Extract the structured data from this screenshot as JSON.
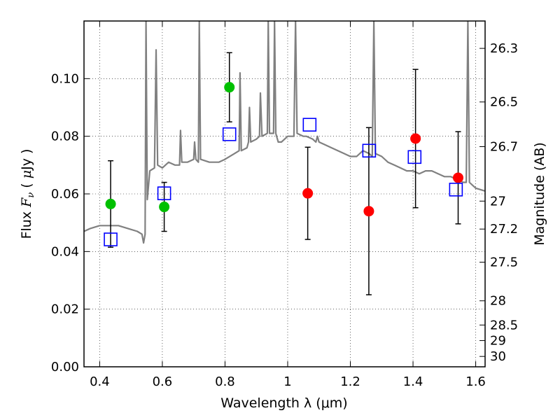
{
  "chart_data": {
    "type": "scatter",
    "xlabel": "Wavelength  λ (μm)",
    "ylabel": "Flux  F_ν  ( μJy )",
    "ylabel_parts": {
      "prefix": "Flux  ",
      "symbol": "F",
      "sub": "ν",
      "mid": "  ( ",
      "mu": "μ",
      "unit": "Jy )"
    },
    "ylabel_right": "Magnitude (AB)",
    "xlim": [
      0.35,
      1.63
    ],
    "ylim": [
      0.0,
      0.12
    ],
    "grid": true,
    "x_ticks": [
      {
        "value": 0.4,
        "label": "0.4"
      },
      {
        "value": 0.6,
        "label": "0.6"
      },
      {
        "value": 0.8,
        "label": "0.8"
      },
      {
        "value": 1.0,
        "label": "1"
      },
      {
        "value": 1.2,
        "label": "1.2"
      },
      {
        "value": 1.4,
        "label": "1.4"
      },
      {
        "value": 1.6,
        "label": "1.6"
      }
    ],
    "y_ticks": [
      {
        "value": 0.0,
        "label": "0.00"
      },
      {
        "value": 0.02,
        "label": "0.02"
      },
      {
        "value": 0.04,
        "label": "0.04"
      },
      {
        "value": 0.06,
        "label": "0.06"
      },
      {
        "value": 0.08,
        "label": "0.08"
      },
      {
        "value": 0.1,
        "label": "0.10"
      }
    ],
    "mag_ticks": [
      {
        "value": 0.1105,
        "label": "26.3"
      },
      {
        "value": 0.0919,
        "label": "26.5"
      },
      {
        "value": 0.0764,
        "label": "26.7"
      },
      {
        "value": 0.0575,
        "label": "27"
      },
      {
        "value": 0.0478,
        "label": "27.2"
      },
      {
        "value": 0.0363,
        "label": "27.5"
      },
      {
        "value": 0.0229,
        "label": "28"
      },
      {
        "value": 0.0145,
        "label": "28.5"
      },
      {
        "value": 0.0091,
        "label": "29"
      },
      {
        "value": 0.0036,
        "label": "30"
      }
    ],
    "colors": {
      "model": "#808080",
      "green": "#00c000",
      "red": "#ff0000",
      "model_box": "#0000ff",
      "errorbar": "#000000"
    },
    "series": [
      {
        "marker": "circle",
        "color": "#00c000",
        "points": [
          {
            "x": 0.435,
            "y": 0.0565,
            "err": 0.015
          },
          {
            "x": 0.606,
            "y": 0.0555,
            "err": 0.0085
          },
          {
            "x": 0.814,
            "y": 0.097,
            "err": 0.012
          }
        ]
      },
      {
        "marker": "circle",
        "color": "#ff0000",
        "points": [
          {
            "x": 1.064,
            "y": 0.0602,
            "err": 0.016
          },
          {
            "x": 1.259,
            "y": 0.054,
            "err": 0.029
          },
          {
            "x": 1.408,
            "y": 0.0792,
            "err": 0.024
          },
          {
            "x": 1.544,
            "y": 0.0656,
            "err": 0.016
          }
        ]
      },
      {
        "marker": "square",
        "color": "#0000ff",
        "points": [
          {
            "x": 0.435,
            "y": 0.0442
          },
          {
            "x": 0.606,
            "y": 0.0602
          },
          {
            "x": 0.814,
            "y": 0.0807
          },
          {
            "x": 1.07,
            "y": 0.084
          },
          {
            "x": 1.26,
            "y": 0.075
          },
          {
            "x": 1.405,
            "y": 0.0728
          },
          {
            "x": 1.537,
            "y": 0.0615
          }
        ]
      }
    ],
    "model_spectrum": [
      [
        0.35,
        0.047
      ],
      [
        0.37,
        0.048
      ],
      [
        0.4,
        0.049
      ],
      [
        0.43,
        0.049
      ],
      [
        0.46,
        0.049
      ],
      [
        0.49,
        0.048
      ],
      [
        0.52,
        0.047
      ],
      [
        0.535,
        0.046
      ],
      [
        0.54,
        0.043
      ],
      [
        0.545,
        0.046
      ],
      [
        0.548,
        0.12
      ],
      [
        0.552,
        0.058
      ],
      [
        0.56,
        0.068
      ],
      [
        0.575,
        0.069
      ],
      [
        0.58,
        0.11
      ],
      [
        0.585,
        0.07
      ],
      [
        0.6,
        0.069
      ],
      [
        0.62,
        0.071
      ],
      [
        0.64,
        0.07
      ],
      [
        0.655,
        0.07
      ],
      [
        0.658,
        0.082
      ],
      [
        0.662,
        0.071
      ],
      [
        0.68,
        0.071
      ],
      [
        0.7,
        0.072
      ],
      [
        0.703,
        0.078
      ],
      [
        0.707,
        0.072
      ],
      [
        0.715,
        0.071
      ],
      [
        0.718,
        0.12
      ],
      [
        0.722,
        0.072
      ],
      [
        0.75,
        0.071
      ],
      [
        0.78,
        0.071
      ],
      [
        0.8,
        0.072
      ],
      [
        0.83,
        0.074
      ],
      [
        0.845,
        0.075
      ],
      [
        0.848,
        0.102
      ],
      [
        0.852,
        0.075
      ],
      [
        0.87,
        0.076
      ],
      [
        0.875,
        0.078
      ],
      [
        0.878,
        0.09
      ],
      [
        0.882,
        0.078
      ],
      [
        0.9,
        0.079
      ],
      [
        0.91,
        0.08
      ],
      [
        0.913,
        0.095
      ],
      [
        0.918,
        0.08
      ],
      [
        0.935,
        0.081
      ],
      [
        0.938,
        0.12
      ],
      [
        0.942,
        0.081
      ],
      [
        0.955,
        0.081
      ],
      [
        0.958,
        0.12
      ],
      [
        0.962,
        0.081
      ],
      [
        0.97,
        0.078
      ],
      [
        0.98,
        0.078
      ],
      [
        0.99,
        0.079
      ],
      [
        1.0,
        0.08
      ],
      [
        1.02,
        0.08
      ],
      [
        1.025,
        0.12
      ],
      [
        1.03,
        0.081
      ],
      [
        1.05,
        0.08
      ],
      [
        1.06,
        0.08
      ],
      [
        1.08,
        0.079
      ],
      [
        1.09,
        0.078
      ],
      [
        1.095,
        0.08
      ],
      [
        1.1,
        0.078
      ],
      [
        1.12,
        0.077
      ],
      [
        1.14,
        0.076
      ],
      [
        1.16,
        0.075
      ],
      [
        1.18,
        0.074
      ],
      [
        1.2,
        0.073
      ],
      [
        1.22,
        0.073
      ],
      [
        1.24,
        0.075
      ],
      [
        1.26,
        0.074
      ],
      [
        1.27,
        0.073
      ],
      [
        1.275,
        0.12
      ],
      [
        1.28,
        0.074
      ],
      [
        1.3,
        0.073
      ],
      [
        1.32,
        0.071
      ],
      [
        1.34,
        0.07
      ],
      [
        1.36,
        0.069
      ],
      [
        1.38,
        0.068
      ],
      [
        1.4,
        0.068
      ],
      [
        1.42,
        0.067
      ],
      [
        1.44,
        0.068
      ],
      [
        1.46,
        0.068
      ],
      [
        1.48,
        0.067
      ],
      [
        1.5,
        0.066
      ],
      [
        1.52,
        0.066
      ],
      [
        1.54,
        0.065
      ],
      [
        1.56,
        0.064
      ],
      [
        1.57,
        0.064
      ],
      [
        1.575,
        0.12
      ],
      [
        1.58,
        0.064
      ],
      [
        1.6,
        0.062
      ],
      [
        1.63,
        0.061
      ]
    ]
  }
}
